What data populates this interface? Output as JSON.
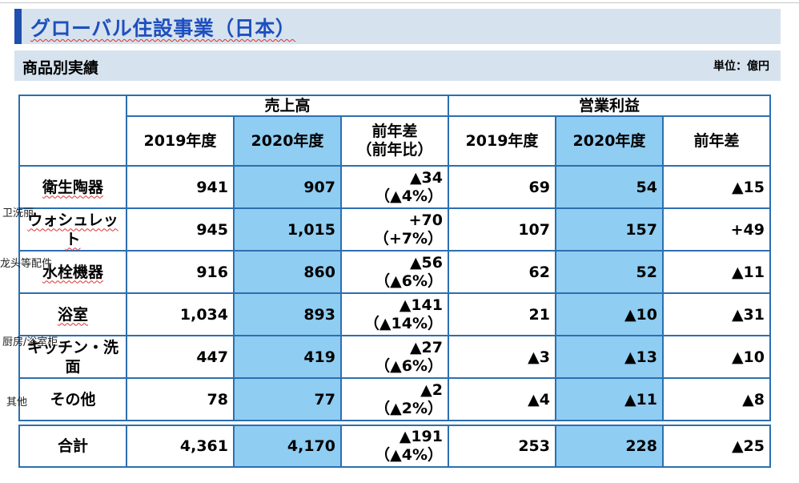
{
  "title": "グローバル住設事業（日本）",
  "subtitle": "商品別実績",
  "unit": "単位：億円",
  "table": {
    "group_headers": [
      "売上高",
      "営業利益"
    ],
    "column_headers": {
      "y2019": "2019年度",
      "y2020": "2020年度",
      "diff_line1": "前年差",
      "diff_line2": "（前年比）",
      "op_diff": "前年差"
    },
    "rows": [
      {
        "label": "衛生陶器",
        "annotation": "卫洗丽",
        "s2019": "941",
        "s2020": "907",
        "sdiff": "▲34",
        "sratio": "（▲4%）",
        "o2019": "69",
        "o2020": "54",
        "odiff": "▲15"
      },
      {
        "label": "ウォシュレット",
        "annotation": "龙头等配件",
        "s2019": "945",
        "s2020": "1,015",
        "sdiff": "+70",
        "sratio": "（+7%）",
        "o2019": "107",
        "o2020": "157",
        "odiff": "+49"
      },
      {
        "label": "水栓機器",
        "annotation": "",
        "s2019": "916",
        "s2020": "860",
        "sdiff": "▲56",
        "sratio": "（▲6%）",
        "o2019": "62",
        "o2020": "52",
        "odiff": "▲11"
      },
      {
        "label": "浴室",
        "annotation": "厨房/浴室柜",
        "s2019": "1,034",
        "s2020": "893",
        "sdiff": "▲141",
        "sratio": "（▲14%）",
        "o2019": "21",
        "o2020": "▲10",
        "odiff": "▲31"
      },
      {
        "label": "キッチン・洗面",
        "annotation": "其他",
        "s2019": "447",
        "s2020": "419",
        "sdiff": "▲27",
        "sratio": "（▲6%）",
        "o2019": "▲3",
        "o2020": "▲13",
        "odiff": "▲10"
      },
      {
        "label": "その他",
        "annotation": "",
        "s2019": "78",
        "s2020": "77",
        "sdiff": "▲2",
        "sratio": "（▲2%）",
        "o2019": "▲4",
        "o2020": "▲11",
        "odiff": "▲8"
      }
    ],
    "total": {
      "label": "合計",
      "s2019": "4,361",
      "s2020": "4,170",
      "sdiff": "▲191",
      "sratio": "（▲4%）",
      "o2019": "253",
      "o2020": "228",
      "odiff": "▲25"
    }
  }
}
